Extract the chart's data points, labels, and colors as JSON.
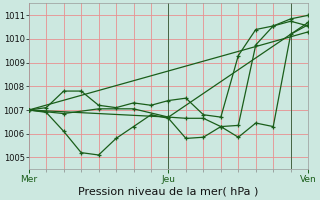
{
  "xlabel": "Pression niveau de la mer( hPa )",
  "background_color": "#cce8e0",
  "grid_color": "#e89090",
  "line_color": "#1a5e1a",
  "ylim": [
    1004.5,
    1011.5
  ],
  "yticks": [
    1005,
    1006,
    1007,
    1008,
    1009,
    1010,
    1011
  ],
  "xtick_labels": [
    "Mer",
    "Jeu",
    "Ven"
  ],
  "xtick_positions": [
    0,
    48,
    96
  ],
  "x_total": 96,
  "series": [
    [
      0,
      1007.0,
      6,
      1007.1,
      12,
      1007.8,
      18,
      1007.8,
      24,
      1007.2,
      30,
      1007.1,
      36,
      1007.3,
      42,
      1007.2,
      48,
      1007.4,
      54,
      1007.5,
      60,
      1006.8,
      66,
      1006.7,
      72,
      1009.3,
      78,
      1010.4,
      84,
      1010.55,
      90,
      1010.75,
      96,
      1010.55
    ],
    [
      0,
      1007.0,
      6,
      1006.9,
      12,
      1006.1,
      18,
      1005.2,
      24,
      1005.1,
      30,
      1005.8,
      36,
      1006.3,
      42,
      1006.8,
      48,
      1006.65,
      54,
      1005.8,
      60,
      1005.85,
      66,
      1006.3,
      72,
      1006.35,
      78,
      1009.75,
      84,
      1010.55,
      90,
      1010.85,
      96,
      1011.0
    ],
    [
      0,
      1007.0,
      48,
      1006.7,
      96,
      1010.7
    ],
    [
      0,
      1007.0,
      96,
      1010.3
    ],
    [
      0,
      1007.0,
      12,
      1006.85,
      24,
      1007.05,
      36,
      1007.05,
      48,
      1006.7,
      54,
      1006.65,
      60,
      1006.65,
      66,
      1006.3,
      72,
      1005.85,
      78,
      1006.45,
      84,
      1006.3,
      90,
      1010.2,
      96,
      1010.6
    ]
  ],
  "vline_positions": [
    48,
    90
  ],
  "minor_grid_x_step": 6,
  "xlabel_fontsize": 8,
  "ytick_fontsize": 6,
  "xtick_fontsize": 6.5,
  "line_width": 0.9,
  "marker_size": 3.5
}
